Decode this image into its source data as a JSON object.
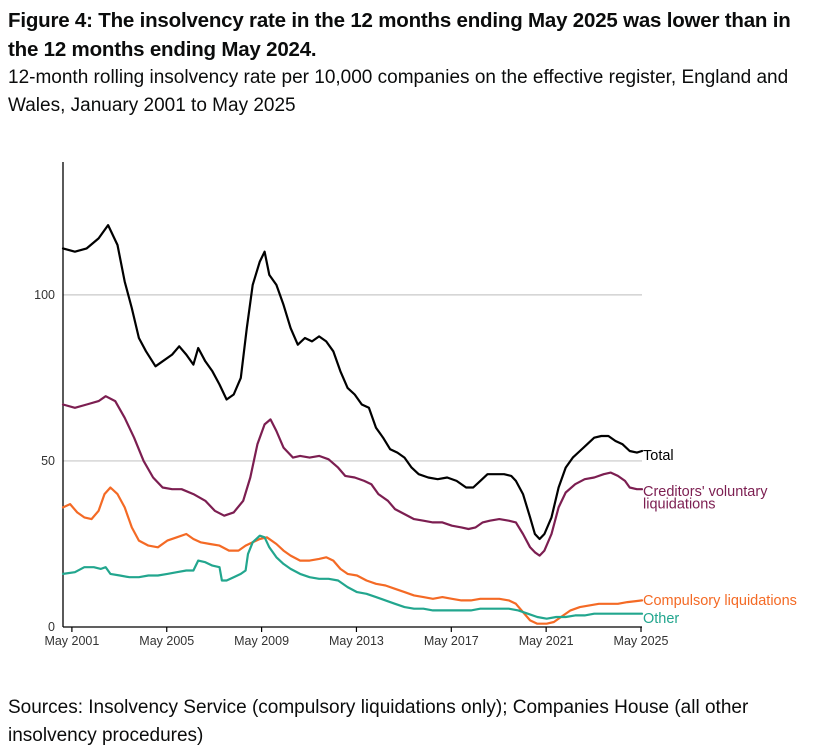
{
  "header": {
    "title": "Figure 4: The insolvency rate in the 12 months ending May 2025 was lower than in the 12 months ending May 2024.",
    "subtitle": "12-month rolling insolvency rate per 10,000 companies on the effective register, England and Wales, January 2001 to May 2025"
  },
  "footer": {
    "source": "Sources: Insolvency Service (compulsory liquidations only); Companies House (all other insolvency procedures)"
  },
  "chart_data": {
    "type": "line",
    "title": "",
    "xlabel": "",
    "ylabel": "",
    "xlim": [
      2001.0,
      2025.417
    ],
    "ylim": [
      0,
      140
    ],
    "grid": true,
    "legend": "direct labels at line ends",
    "x_ticks": [
      {
        "label": "May 2001",
        "value": 2001.375
      },
      {
        "label": "May 2005",
        "value": 2005.375
      },
      {
        "label": "May 2009",
        "value": 2009.375
      },
      {
        "label": "May 2013",
        "value": 2013.375
      },
      {
        "label": "May 2017",
        "value": 2017.375
      },
      {
        "label": "May 2021",
        "value": 2021.375
      },
      {
        "label": "May 2025",
        "value": 2025.375
      }
    ],
    "y_ticks": [
      {
        "label": "0",
        "value": 0
      },
      {
        "label": "50",
        "value": 50
      },
      {
        "label": "100",
        "value": 100
      }
    ],
    "series": [
      {
        "name": "Total",
        "color": "#000000",
        "points": [
          [
            2001.0,
            114
          ],
          [
            2001.5,
            113
          ],
          [
            2002.0,
            114
          ],
          [
            2002.5,
            117
          ],
          [
            2002.9,
            121
          ],
          [
            2003.3,
            115
          ],
          [
            2003.6,
            104
          ],
          [
            2003.9,
            96
          ],
          [
            2004.2,
            87
          ],
          [
            2004.5,
            83
          ],
          [
            2004.9,
            78.5
          ],
          [
            2005.2,
            80
          ],
          [
            2005.6,
            82
          ],
          [
            2005.9,
            84.5
          ],
          [
            2006.2,
            82
          ],
          [
            2006.5,
            79
          ],
          [
            2006.7,
            84
          ],
          [
            2007.0,
            80
          ],
          [
            2007.3,
            77
          ],
          [
            2007.6,
            73
          ],
          [
            2007.9,
            68.5
          ],
          [
            2008.2,
            70
          ],
          [
            2008.5,
            75
          ],
          [
            2008.75,
            90
          ],
          [
            2009.0,
            103
          ],
          [
            2009.3,
            110
          ],
          [
            2009.5,
            113
          ],
          [
            2009.7,
            106
          ],
          [
            2010.0,
            103
          ],
          [
            2010.3,
            97
          ],
          [
            2010.6,
            90
          ],
          [
            2010.9,
            85
          ],
          [
            2011.2,
            87
          ],
          [
            2011.5,
            86
          ],
          [
            2011.8,
            87.5
          ],
          [
            2012.1,
            86
          ],
          [
            2012.4,
            83
          ],
          [
            2012.7,
            77
          ],
          [
            2013.0,
            72
          ],
          [
            2013.3,
            70
          ],
          [
            2013.6,
            67
          ],
          [
            2013.9,
            66
          ],
          [
            2014.2,
            60
          ],
          [
            2014.5,
            57
          ],
          [
            2014.8,
            53.5
          ],
          [
            2015.1,
            52.5
          ],
          [
            2015.4,
            51
          ],
          [
            2015.7,
            48
          ],
          [
            2016.0,
            46
          ],
          [
            2016.4,
            45
          ],
          [
            2016.8,
            44.5
          ],
          [
            2017.2,
            45
          ],
          [
            2017.6,
            44
          ],
          [
            2018.0,
            42
          ],
          [
            2018.3,
            42
          ],
          [
            2018.6,
            44
          ],
          [
            2018.9,
            46
          ],
          [
            2019.2,
            46
          ],
          [
            2019.6,
            46
          ],
          [
            2019.9,
            45.5
          ],
          [
            2020.1,
            44
          ],
          [
            2020.4,
            40
          ],
          [
            2020.7,
            33
          ],
          [
            2020.9,
            28
          ],
          [
            2021.1,
            26.5
          ],
          [
            2021.3,
            28
          ],
          [
            2021.6,
            33
          ],
          [
            2021.9,
            42
          ],
          [
            2022.2,
            48
          ],
          [
            2022.5,
            51
          ],
          [
            2022.8,
            53
          ],
          [
            2023.1,
            55
          ],
          [
            2023.4,
            57
          ],
          [
            2023.7,
            57.5
          ],
          [
            2024.0,
            57.5
          ],
          [
            2024.3,
            56
          ],
          [
            2024.6,
            55
          ],
          [
            2024.9,
            53
          ],
          [
            2025.2,
            52.5
          ],
          [
            2025.417,
            53
          ]
        ]
      },
      {
        "name": "Creditors' voluntary liquidations",
        "color": "#7c1e51",
        "points": [
          [
            2001.0,
            67
          ],
          [
            2001.5,
            66
          ],
          [
            2002.0,
            67
          ],
          [
            2002.5,
            68
          ],
          [
            2002.8,
            69.5
          ],
          [
            2003.2,
            68
          ],
          [
            2003.6,
            63
          ],
          [
            2004.0,
            57
          ],
          [
            2004.4,
            50
          ],
          [
            2004.8,
            45
          ],
          [
            2005.2,
            42
          ],
          [
            2005.6,
            41.5
          ],
          [
            2006.0,
            41.5
          ],
          [
            2006.5,
            40
          ],
          [
            2007.0,
            38
          ],
          [
            2007.4,
            35
          ],
          [
            2007.8,
            33.5
          ],
          [
            2008.2,
            34.5
          ],
          [
            2008.6,
            38
          ],
          [
            2008.9,
            45
          ],
          [
            2009.2,
            55
          ],
          [
            2009.5,
            61
          ],
          [
            2009.75,
            62.5
          ],
          [
            2010.0,
            59
          ],
          [
            2010.3,
            54
          ],
          [
            2010.7,
            51
          ],
          [
            2011.0,
            51.5
          ],
          [
            2011.4,
            51
          ],
          [
            2011.8,
            51.5
          ],
          [
            2012.2,
            50.5
          ],
          [
            2012.6,
            48
          ],
          [
            2012.9,
            45.5
          ],
          [
            2013.3,
            45
          ],
          [
            2013.7,
            44
          ],
          [
            2014.0,
            43
          ],
          [
            2014.3,
            40
          ],
          [
            2014.7,
            38
          ],
          [
            2015.0,
            35.5
          ],
          [
            2015.4,
            34
          ],
          [
            2015.8,
            32.5
          ],
          [
            2016.2,
            32
          ],
          [
            2016.6,
            31.5
          ],
          [
            2017.0,
            31.5
          ],
          [
            2017.4,
            30.5
          ],
          [
            2017.8,
            30
          ],
          [
            2018.1,
            29.5
          ],
          [
            2018.4,
            30
          ],
          [
            2018.7,
            31.5
          ],
          [
            2019.0,
            32
          ],
          [
            2019.4,
            32.5
          ],
          [
            2019.8,
            32
          ],
          [
            2020.1,
            31.5
          ],
          [
            2020.4,
            28
          ],
          [
            2020.7,
            24
          ],
          [
            2020.9,
            22.5
          ],
          [
            2021.1,
            21.5
          ],
          [
            2021.3,
            23
          ],
          [
            2021.6,
            28
          ],
          [
            2021.9,
            36
          ],
          [
            2022.2,
            40.5
          ],
          [
            2022.6,
            43
          ],
          [
            2023.0,
            44.5
          ],
          [
            2023.4,
            45
          ],
          [
            2023.8,
            46
          ],
          [
            2024.1,
            46.5
          ],
          [
            2024.4,
            45.5
          ],
          [
            2024.7,
            44
          ],
          [
            2024.9,
            42
          ],
          [
            2025.2,
            41.5
          ],
          [
            2025.417,
            41.5
          ]
        ]
      },
      {
        "name": "Compulsory liquidations",
        "color": "#f46a25",
        "points": [
          [
            2001.0,
            36
          ],
          [
            2001.3,
            37
          ],
          [
            2001.6,
            34.5
          ],
          [
            2001.9,
            33
          ],
          [
            2002.2,
            32.5
          ],
          [
            2002.5,
            35
          ],
          [
            2002.75,
            40
          ],
          [
            2003.0,
            42
          ],
          [
            2003.3,
            40
          ],
          [
            2003.6,
            36
          ],
          [
            2003.9,
            30
          ],
          [
            2004.2,
            26
          ],
          [
            2004.6,
            24.5
          ],
          [
            2005.0,
            24
          ],
          [
            2005.4,
            26
          ],
          [
            2005.8,
            27
          ],
          [
            2006.2,
            28
          ],
          [
            2006.5,
            26.5
          ],
          [
            2006.8,
            25.5
          ],
          [
            2007.2,
            25
          ],
          [
            2007.6,
            24.5
          ],
          [
            2008.0,
            23
          ],
          [
            2008.4,
            23
          ],
          [
            2008.7,
            24.5
          ],
          [
            2009.0,
            25.5
          ],
          [
            2009.3,
            26.5
          ],
          [
            2009.6,
            27
          ],
          [
            2010.0,
            25
          ],
          [
            2010.3,
            23
          ],
          [
            2010.6,
            21.5
          ],
          [
            2011.0,
            20
          ],
          [
            2011.4,
            20
          ],
          [
            2011.8,
            20.5
          ],
          [
            2012.1,
            21
          ],
          [
            2012.4,
            20
          ],
          [
            2012.7,
            17.5
          ],
          [
            2013.0,
            16
          ],
          [
            2013.4,
            15.5
          ],
          [
            2013.8,
            14
          ],
          [
            2014.2,
            13
          ],
          [
            2014.6,
            12.5
          ],
          [
            2015.0,
            11.5
          ],
          [
            2015.4,
            10.5
          ],
          [
            2015.8,
            9.5
          ],
          [
            2016.2,
            9
          ],
          [
            2016.6,
            8.5
          ],
          [
            2017.0,
            9
          ],
          [
            2017.4,
            8.5
          ],
          [
            2017.8,
            8
          ],
          [
            2018.2,
            8
          ],
          [
            2018.6,
            8.5
          ],
          [
            2019.0,
            8.5
          ],
          [
            2019.4,
            8.5
          ],
          [
            2019.8,
            8
          ],
          [
            2020.1,
            7
          ],
          [
            2020.4,
            4.5
          ],
          [
            2020.7,
            2
          ],
          [
            2021.0,
            1
          ],
          [
            2021.4,
            1
          ],
          [
            2021.7,
            1.5
          ],
          [
            2022.0,
            3
          ],
          [
            2022.4,
            5
          ],
          [
            2022.8,
            6
          ],
          [
            2023.2,
            6.5
          ],
          [
            2023.6,
            7
          ],
          [
            2024.0,
            7
          ],
          [
            2024.4,
            7
          ],
          [
            2024.8,
            7.5
          ],
          [
            2025.417,
            8
          ]
        ]
      },
      {
        "name": "Other",
        "color": "#22a68e",
        "points": [
          [
            2001.0,
            16
          ],
          [
            2001.5,
            16.5
          ],
          [
            2001.9,
            18
          ],
          [
            2002.3,
            18
          ],
          [
            2002.6,
            17.5
          ],
          [
            2002.8,
            18
          ],
          [
            2003.0,
            16
          ],
          [
            2003.4,
            15.5
          ],
          [
            2003.8,
            15
          ],
          [
            2004.2,
            15
          ],
          [
            2004.6,
            15.5
          ],
          [
            2005.0,
            15.5
          ],
          [
            2005.4,
            16
          ],
          [
            2005.8,
            16.5
          ],
          [
            2006.2,
            17
          ],
          [
            2006.5,
            17
          ],
          [
            2006.7,
            20
          ],
          [
            2007.0,
            19.5
          ],
          [
            2007.3,
            18.5
          ],
          [
            2007.6,
            18
          ],
          [
            2007.7,
            14
          ],
          [
            2007.9,
            14
          ],
          [
            2008.2,
            15
          ],
          [
            2008.5,
            16
          ],
          [
            2008.7,
            17
          ],
          [
            2008.8,
            22
          ],
          [
            2009.0,
            25.5
          ],
          [
            2009.3,
            27.5
          ],
          [
            2009.5,
            27
          ],
          [
            2009.7,
            24
          ],
          [
            2010.0,
            21
          ],
          [
            2010.3,
            19
          ],
          [
            2010.6,
            17.5
          ],
          [
            2011.0,
            16
          ],
          [
            2011.4,
            15
          ],
          [
            2011.8,
            14.5
          ],
          [
            2012.2,
            14.5
          ],
          [
            2012.6,
            14
          ],
          [
            2013.0,
            12
          ],
          [
            2013.4,
            10.5
          ],
          [
            2013.8,
            10
          ],
          [
            2014.2,
            9
          ],
          [
            2014.6,
            8
          ],
          [
            2015.0,
            7
          ],
          [
            2015.4,
            6
          ],
          [
            2015.8,
            5.5
          ],
          [
            2016.2,
            5.5
          ],
          [
            2016.6,
            5
          ],
          [
            2017.0,
            5
          ],
          [
            2017.4,
            5
          ],
          [
            2017.8,
            5
          ],
          [
            2018.2,
            5
          ],
          [
            2018.6,
            5.5
          ],
          [
            2019.0,
            5.5
          ],
          [
            2019.4,
            5.5
          ],
          [
            2019.8,
            5.5
          ],
          [
            2020.2,
            5
          ],
          [
            2020.6,
            4
          ],
          [
            2021.0,
            3
          ],
          [
            2021.4,
            2.5
          ],
          [
            2021.8,
            3
          ],
          [
            2022.2,
            3
          ],
          [
            2022.6,
            3.5
          ],
          [
            2023.0,
            3.5
          ],
          [
            2023.4,
            4
          ],
          [
            2023.8,
            4
          ],
          [
            2024.2,
            4
          ],
          [
            2024.6,
            4
          ],
          [
            2025.0,
            4
          ],
          [
            2025.417,
            4
          ]
        ]
      }
    ]
  }
}
